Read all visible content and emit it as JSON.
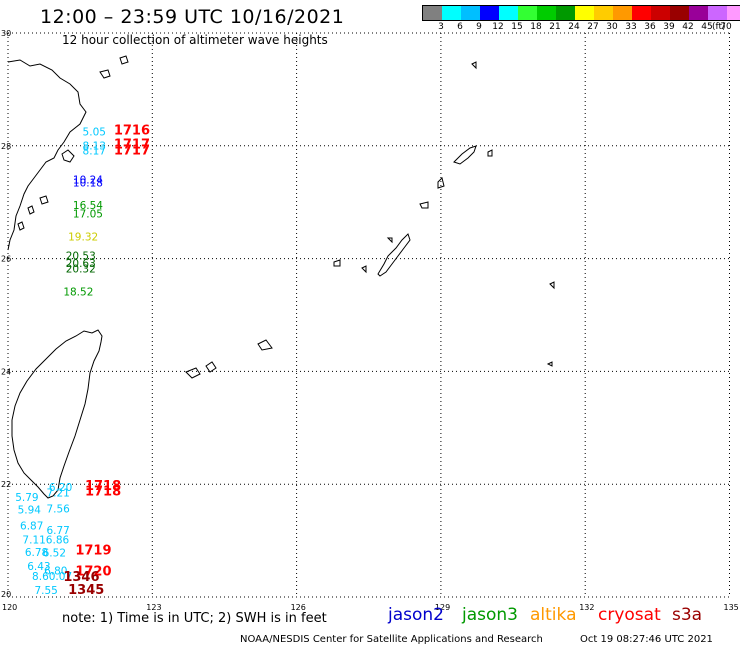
{
  "header": {
    "title": "12:00 – 23:59 UTC 10/16/2021",
    "subtitle": "12 hour collection of altimeter wave heights"
  },
  "color_scale": {
    "unit": "(ft)",
    "colors": [
      "#808080",
      "#00ffff",
      "#00bfff",
      "#0000ff",
      "#00ffff",
      "#33ff33",
      "#00cc00",
      "#009900",
      "#ffff00",
      "#ffcc00",
      "#ff9900",
      "#ff0000",
      "#cc0000",
      "#990000",
      "#990099",
      "#cc66ff",
      "#ff99ff",
      "#000000"
    ],
    "labels": [
      "3",
      "6",
      "9",
      "12",
      "15",
      "18",
      "21",
      "24",
      "27",
      "30",
      "33",
      "36",
      "39",
      "42",
      "45",
      "70"
    ]
  },
  "axes": {
    "lon_labels": [
      "120",
      "123",
      "126",
      "129",
      "132",
      "135"
    ],
    "lat_labels": [
      "20",
      "22",
      "24",
      "26",
      "28",
      "30"
    ]
  },
  "observations": [
    {
      "text": "5.05",
      "color": "#00c8ff",
      "lon": 121.55,
      "lat": 28.18
    },
    {
      "text": "8.13",
      "color": "#00c8ff",
      "lon": 121.55,
      "lat": 27.93
    },
    {
      "text": "8.17",
      "color": "#00c8ff",
      "lon": 121.55,
      "lat": 27.85
    },
    {
      "text": "10.24",
      "color": "#0000ff",
      "lon": 121.35,
      "lat": 27.33
    },
    {
      "text": "10.18",
      "color": "#0000ff",
      "lon": 121.35,
      "lat": 27.28
    },
    {
      "text": "16.54",
      "color": "#009900",
      "lon": 121.35,
      "lat": 26.88
    },
    {
      "text": "17.05",
      "color": "#009900",
      "lon": 121.35,
      "lat": 26.73
    },
    {
      "text": "19.32",
      "color": "#cccc00",
      "lon": 121.25,
      "lat": 26.32
    },
    {
      "text": "20.53",
      "color": "#006600",
      "lon": 121.2,
      "lat": 25.98
    },
    {
      "text": "20.63",
      "color": "#006600",
      "lon": 121.2,
      "lat": 25.85
    },
    {
      "text": "20.32",
      "color": "#006600",
      "lon": 121.2,
      "lat": 25.75
    },
    {
      "text": "18.52",
      "color": "#009900",
      "lon": 121.15,
      "lat": 25.35
    },
    {
      "text": "6.20",
      "color": "#00c8ff",
      "lon": 120.85,
      "lat": 21.88
    },
    {
      "text": "7.21",
      "color": "#00c8ff",
      "lon": 120.8,
      "lat": 21.78
    },
    {
      "text": "5.79",
      "color": "#00c8ff",
      "lon": 120.15,
      "lat": 21.7
    },
    {
      "text": "7.56",
      "color": "#00c8ff",
      "lon": 120.8,
      "lat": 21.5
    },
    {
      "text": "5.94",
      "color": "#00c8ff",
      "lon": 120.2,
      "lat": 21.48
    },
    {
      "text": "6.87",
      "color": "#00c8ff",
      "lon": 120.25,
      "lat": 21.2
    },
    {
      "text": "6.77",
      "color": "#00c8ff",
      "lon": 120.8,
      "lat": 21.12
    },
    {
      "text": "7.116.86",
      "color": "#00c8ff",
      "lon": 120.3,
      "lat": 20.95
    },
    {
      "text": "6.78",
      "color": "#00c8ff",
      "lon": 120.35,
      "lat": 20.73
    },
    {
      "text": "6.52",
      "color": "#00c8ff",
      "lon": 120.72,
      "lat": 20.72
    },
    {
      "text": "6.43",
      "color": "#00c8ff",
      "lon": 120.4,
      "lat": 20.48
    },
    {
      "text": "6.80",
      "color": "#00c8ff",
      "lon": 120.75,
      "lat": 20.4
    },
    {
      "text": "8.60.07",
      "color": "#00c8ff",
      "lon": 120.5,
      "lat": 20.3
    },
    {
      "text": "7.55",
      "color": "#00c8ff",
      "lon": 120.55,
      "lat": 20.05
    }
  ],
  "times": [
    {
      "text": "1716",
      "color": "#ff0000",
      "lon": 122.2,
      "lat": 28.2
    },
    {
      "text": "1717",
      "color": "#ff0000",
      "lon": 122.2,
      "lat": 27.95
    },
    {
      "text": "1717",
      "color": "#ff0000",
      "lon": 122.2,
      "lat": 27.85
    },
    {
      "text": "1718",
      "color": "#ff0000",
      "lon": 121.6,
      "lat": 21.9
    },
    {
      "text": "1718",
      "color": "#ff0000",
      "lon": 121.6,
      "lat": 21.8
    },
    {
      "text": "1719",
      "color": "#ff0000",
      "lon": 121.4,
      "lat": 20.75
    },
    {
      "text": "1720",
      "color": "#ff0000",
      "lon": 121.4,
      "lat": 20.38
    },
    {
      "text": "1346",
      "color": "#990000",
      "lon": 121.15,
      "lat": 20.28
    },
    {
      "text": "1345",
      "color": "#990000",
      "lon": 121.25,
      "lat": 20.05
    }
  ],
  "note": "note:  1) Time is in UTC;  2) SWH is in feet",
  "satellites": [
    {
      "name": "jason2",
      "color": "#0000cc"
    },
    {
      "name": "jason3",
      "color": "#009900"
    },
    {
      "name": "altika",
      "color": "#ff9900"
    },
    {
      "name": "cryosat",
      "color": "#ff0000"
    },
    {
      "name": "s3a",
      "color": "#990000"
    }
  ],
  "footer": {
    "org": "NOAA/NESDIS Center for Satellite Applications and Research",
    "timestamp": "Oct 19 08:27:46 UTC 2021"
  }
}
